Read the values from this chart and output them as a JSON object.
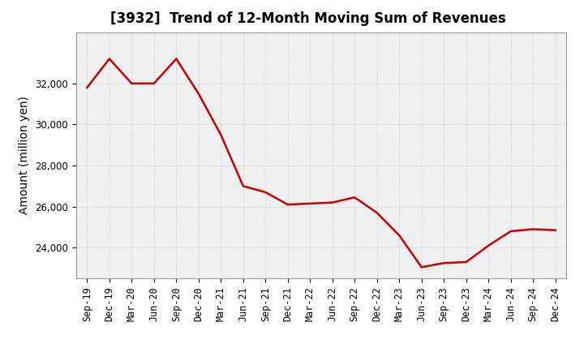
{
  "title": "[3932]  Trend of 12-Month Moving Sum of Revenues",
  "ylabel": "Amount (million yen)",
  "x_labels": [
    "Sep-19",
    "Dec-19",
    "Mar-20",
    "Jun-20",
    "Sep-20",
    "Dec-20",
    "Mar-21",
    "Jun-21",
    "Sep-21",
    "Dec-21",
    "Mar-22",
    "Jun-22",
    "Sep-22",
    "Dec-22",
    "Mar-23",
    "Jun-23",
    "Sep-23",
    "Dec-23",
    "Mar-24",
    "Jun-24",
    "Sep-24",
    "Dec-24"
  ],
  "values": [
    31800,
    33200,
    32000,
    32000,
    33200,
    31500,
    29500,
    27000,
    26700,
    26100,
    26150,
    26200,
    26450,
    25700,
    24600,
    23050,
    23250,
    23300,
    24100,
    24800,
    24900,
    24850
  ],
  "line_color": "#cc0000",
  "line_width": 1.8,
  "background_color": "#ffffff",
  "plot_bg_color": "#f0f0f0",
  "grid_color": "#cccccc",
  "grid_style": ":",
  "ylim_min": 22500,
  "ylim_max": 34500,
  "yticks": [
    24000,
    26000,
    28000,
    30000,
    32000
  ],
  "title_fontsize": 12,
  "title_fontweight": "bold",
  "axis_label_fontsize": 10,
  "tick_fontsize": 8.5
}
